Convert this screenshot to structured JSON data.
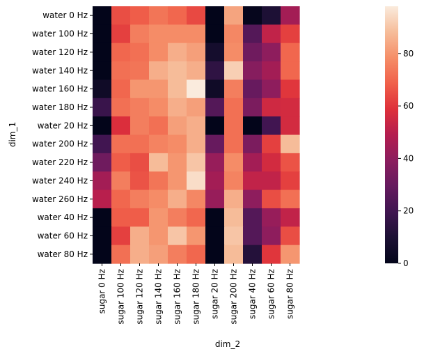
{
  "chart_data": {
    "type": "heatmap",
    "xlabel": "dim_2",
    "ylabel": "dim_1",
    "x_categories": [
      "sugar 0 Hz",
      "sugar 100 Hz",
      "sugar 120 Hz",
      "sugar 140 Hz",
      "sugar 160 Hz",
      "sugar 180 Hz",
      "sugar 20 Hz",
      "sugar 200 Hz",
      "sugar 40 Hz",
      "sugar 60 Hz",
      "sugar 80 Hz"
    ],
    "y_categories": [
      "water 0 Hz",
      "water 100 Hz",
      "water 120 Hz",
      "water 140 Hz",
      "water 160 Hz",
      "water 180 Hz",
      "water 20 Hz",
      "water 200 Hz",
      "water 220 Hz",
      "water 240 Hz",
      "water 260 Hz",
      "water 40 Hz",
      "water 60 Hz",
      "water 80 Hz"
    ],
    "values": [
      [
        0,
        65,
        68,
        73,
        70,
        64,
        0,
        83,
        1,
        10,
        45
      ],
      [
        0,
        62,
        75,
        78,
        78,
        78,
        0,
        77,
        25,
        52,
        62
      ],
      [
        0,
        70,
        72,
        78,
        85,
        82,
        7,
        78,
        32,
        40,
        70
      ],
      [
        0,
        72,
        73,
        85,
        88,
        85,
        15,
        92,
        38,
        45,
        70
      ],
      [
        5,
        70,
        80,
        80,
        88,
        98,
        5,
        75,
        30,
        40,
        60
      ],
      [
        18,
        72,
        75,
        78,
        85,
        82,
        25,
        72,
        35,
        55,
        56
      ],
      [
        0,
        58,
        75,
        72,
        82,
        85,
        0,
        72,
        0,
        20,
        56
      ],
      [
        20,
        72,
        72,
        76,
        78,
        85,
        30,
        72,
        35,
        62,
        88
      ],
      [
        32,
        68,
        65,
        88,
        80,
        90,
        42,
        78,
        45,
        56,
        66
      ],
      [
        45,
        75,
        66,
        73,
        80,
        95,
        45,
        76,
        52,
        52,
        62
      ],
      [
        50,
        70,
        75,
        78,
        85,
        77,
        42,
        85,
        40,
        65,
        72
      ],
      [
        0,
        68,
        68,
        80,
        75,
        70,
        0,
        88,
        25,
        42,
        52
      ],
      [
        0,
        62,
        85,
        80,
        90,
        80,
        0,
        90,
        25,
        40,
        65
      ],
      [
        0,
        72,
        85,
        82,
        75,
        70,
        0,
        88,
        12,
        60,
        80
      ]
    ],
    "colorbar": {
      "min": 0,
      "max": 98,
      "ticks": [
        0,
        20,
        40,
        60,
        80
      ]
    },
    "colormap": "rocket"
  }
}
